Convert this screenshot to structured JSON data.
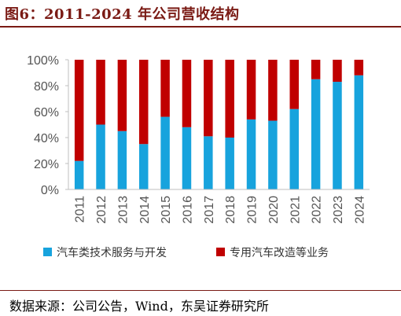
{
  "header": {
    "title": "图6：2011-2024 年公司营收结构"
  },
  "footer": {
    "source": "数据来源：公司公告，Wind，东吴证券研究所"
  },
  "colors": {
    "accent": "#7a1a14",
    "series1": "#17a3dd",
    "series2": "#c00000",
    "axis": "#bfbfbf"
  },
  "chart_data": {
    "type": "bar",
    "stacked": true,
    "categories": [
      "2011",
      "2012",
      "2013",
      "2014",
      "2015",
      "2016",
      "2017",
      "2018",
      "2019",
      "2020",
      "2021",
      "2022",
      "2023",
      "2024"
    ],
    "series": [
      {
        "name": "汽车类技术服务与开发",
        "values": [
          22,
          50,
          45,
          35,
          56,
          48,
          41,
          40,
          54,
          53,
          62,
          85,
          83,
          88
        ]
      },
      {
        "name": "专用汽车改造等业务",
        "values": [
          78,
          50,
          55,
          65,
          44,
          52,
          59,
          60,
          46,
          47,
          38,
          15,
          17,
          12
        ]
      }
    ],
    "ylim": [
      0,
      100
    ],
    "yticks": [
      "0%",
      "20%",
      "40%",
      "60%",
      "80%",
      "100%"
    ],
    "legend": "bottom"
  }
}
